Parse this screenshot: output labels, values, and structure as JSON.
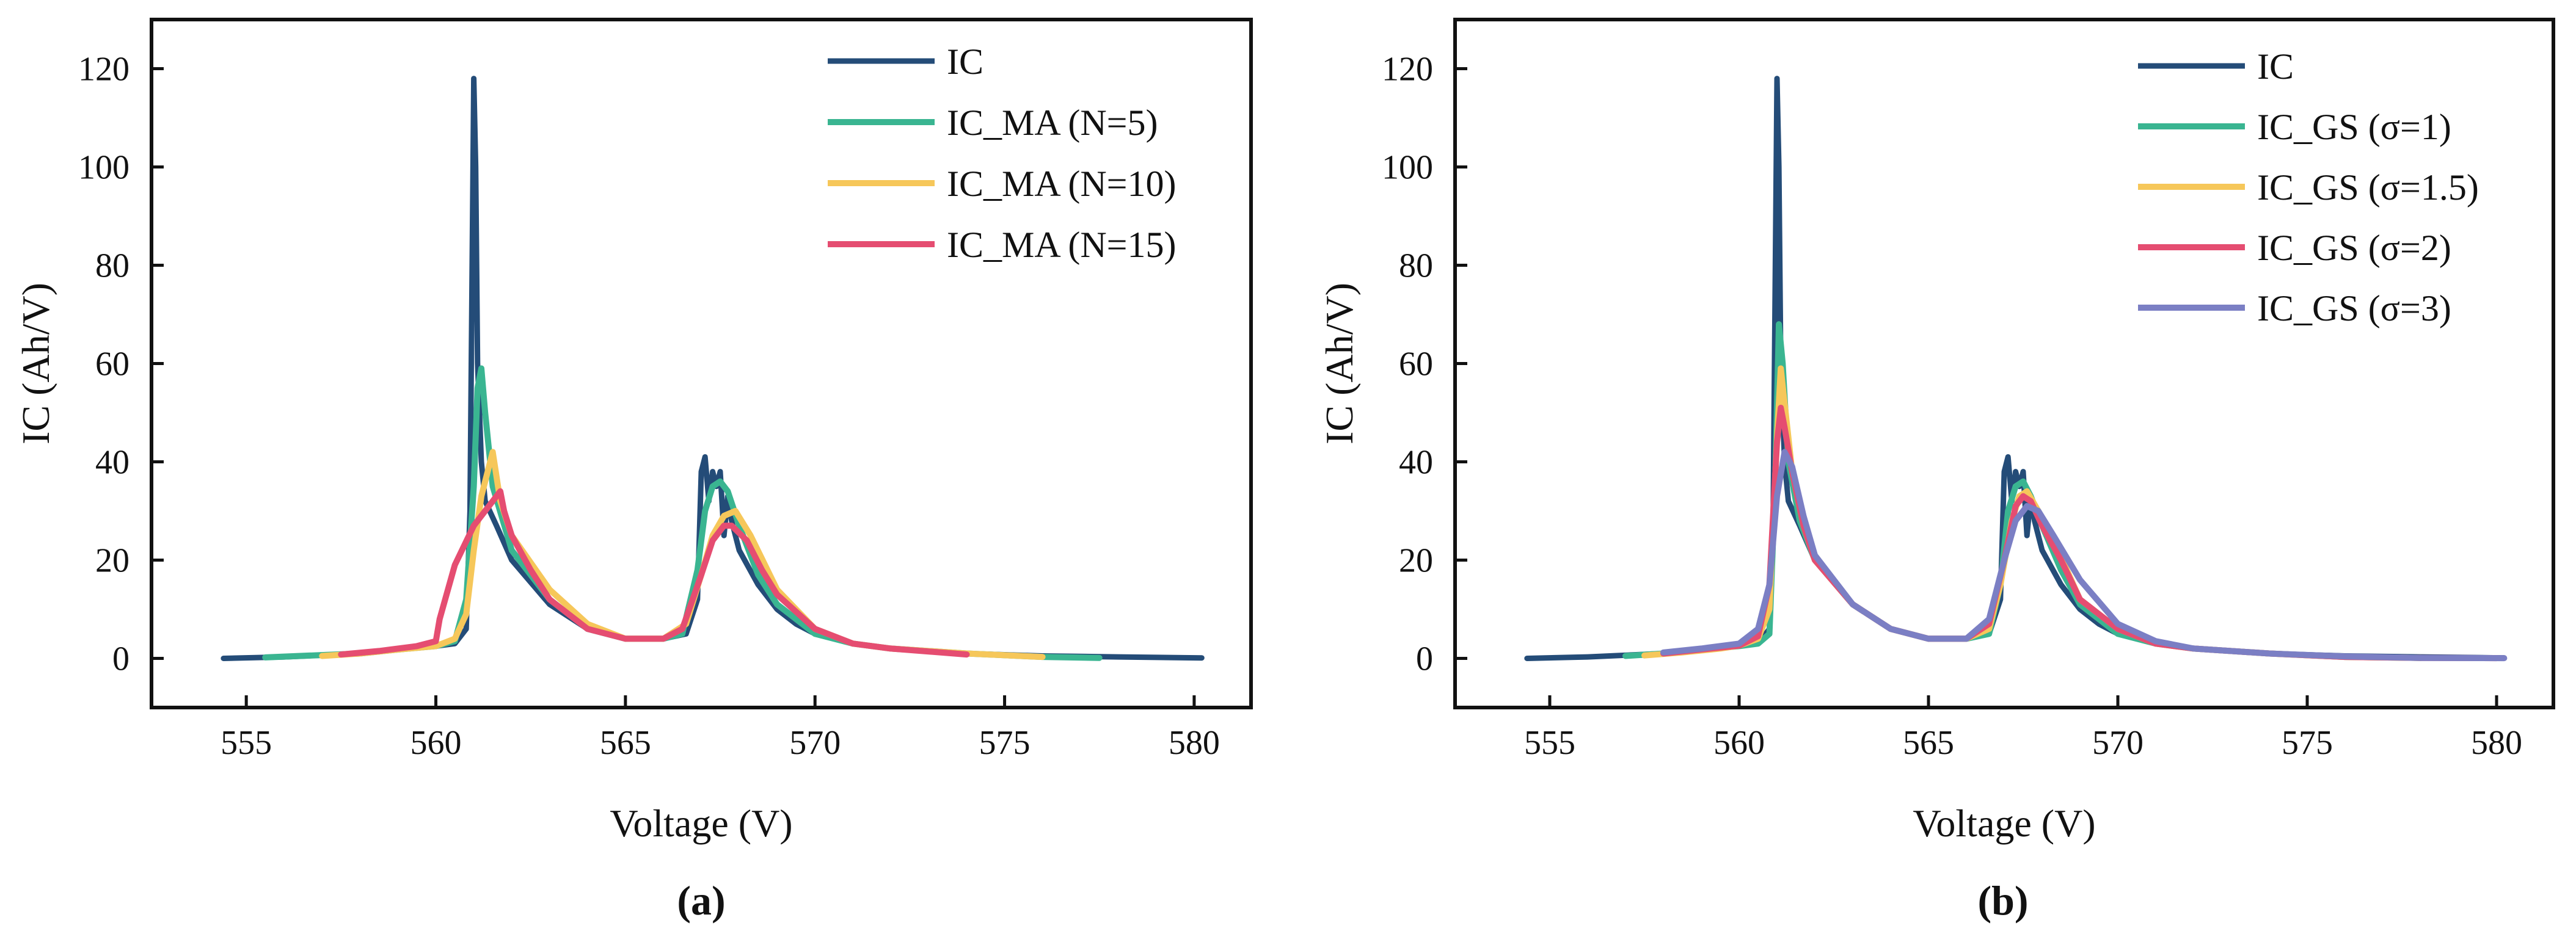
{
  "chart_data": [
    {
      "type": "line",
      "panel_label": "(a)",
      "xlabel": "Voltage (V)",
      "ylabel": "IC (Ah/V)",
      "xlim": [
        552.5,
        581.5
      ],
      "ylim": [
        -10,
        130
      ],
      "xticks": [
        555,
        560,
        565,
        570,
        575,
        580
      ],
      "yticks": [
        0,
        20,
        40,
        60,
        80,
        100,
        120
      ],
      "legend_position": "top-right",
      "series": [
        {
          "name": "IC",
          "color": "#244c78",
          "x": [
            554.4,
            556,
            558,
            559,
            560,
            560.5,
            560.8,
            560.9,
            561.0,
            561.05,
            561.1,
            561.2,
            561.3,
            561.6,
            562,
            563,
            564,
            565,
            566,
            566.6,
            566.9,
            567.0,
            567.1,
            567.2,
            567.3,
            567.4,
            567.5,
            567.6,
            567.7,
            567.8,
            568,
            568.5,
            569,
            569.5,
            570,
            571,
            572,
            574,
            576,
            578,
            580.2
          ],
          "y": [
            0,
            0.3,
            1,
            1.8,
            2.5,
            3,
            6,
            30,
            118,
            100,
            60,
            40,
            32,
            27,
            20,
            11,
            6,
            4,
            4,
            5,
            12,
            38,
            41,
            32,
            38,
            35,
            38,
            25,
            33,
            28,
            22,
            15,
            10,
            7,
            5,
            3,
            2,
            1,
            0.5,
            0.3,
            0.1
          ]
        },
        {
          "name": "IC_MA (N=5)",
          "color": "#3ab591",
          "x": [
            555.5,
            558,
            559,
            560,
            560.5,
            560.8,
            561.0,
            561.1,
            561.2,
            561.3,
            561.5,
            562,
            563,
            564,
            565,
            566,
            566.5,
            566.9,
            567.1,
            567.3,
            567.5,
            567.7,
            568,
            568.5,
            569,
            570,
            571,
            572,
            574,
            576,
            577.5
          ],
          "y": [
            0.2,
            1,
            1.8,
            2.5,
            3.5,
            12,
            35,
            55,
            59,
            50,
            35,
            22,
            12,
            6,
            4,
            4,
            5,
            18,
            30,
            35,
            36,
            34,
            27,
            17,
            11,
            5,
            3,
            2,
            1,
            0.3,
            0.1
          ]
        },
        {
          "name": "IC_MA (N=10)",
          "color": "#f6c75a",
          "x": [
            557,
            558,
            559,
            560,
            560.5,
            560.8,
            561.0,
            561.2,
            561.4,
            561.5,
            561.7,
            562,
            563,
            564,
            565,
            566,
            566.6,
            567.0,
            567.3,
            567.6,
            567.9,
            568.3,
            569,
            570,
            571,
            572,
            574,
            576
          ],
          "y": [
            0.5,
            1,
            1.8,
            2.5,
            4,
            9,
            22,
            33,
            39,
            42,
            32,
            25,
            14,
            7,
            4,
            4,
            7,
            17,
            25,
            29,
            30,
            25,
            14,
            6,
            3,
            2,
            1,
            0.3
          ]
        },
        {
          "name": "IC_MA (N=15)",
          "color": "#e54d71",
          "x": [
            557.5,
            558.5,
            559.5,
            560,
            560.1,
            560.5,
            561,
            561.5,
            561.7,
            561.8,
            562,
            562.5,
            563,
            564,
            565,
            566,
            566.5,
            567,
            567.3,
            567.6,
            567.8,
            568.2,
            568.6,
            569,
            570,
            571,
            572,
            574
          ],
          "y": [
            0.8,
            1.5,
            2.5,
            3.5,
            8,
            19,
            27,
            32,
            34,
            30,
            25,
            18,
            12,
            6,
            4,
            4,
            6,
            17,
            24,
            27,
            27,
            24,
            18,
            13,
            6,
            3,
            2,
            0.8
          ]
        }
      ]
    },
    {
      "type": "line",
      "panel_label": "(b)",
      "xlabel": "Voltage (V)",
      "ylabel": "IC (Ah/V)",
      "xlim": [
        552.5,
        581.5
      ],
      "ylim": [
        -10,
        130
      ],
      "xticks": [
        555,
        560,
        565,
        570,
        575,
        580
      ],
      "yticks": [
        0,
        20,
        40,
        60,
        80,
        100,
        120
      ],
      "legend_position": "top-right",
      "series": [
        {
          "name": "IC",
          "color": "#244c78",
          "x": [
            554.4,
            556,
            558,
            559,
            560,
            560.5,
            560.8,
            560.9,
            561.0,
            561.05,
            561.1,
            561.2,
            561.3,
            561.6,
            562,
            563,
            564,
            565,
            566,
            566.6,
            566.9,
            567.0,
            567.1,
            567.2,
            567.3,
            567.4,
            567.5,
            567.6,
            567.7,
            567.8,
            568,
            568.5,
            569,
            569.5,
            570,
            571,
            572,
            574,
            576,
            578,
            580.2
          ],
          "y": [
            0,
            0.3,
            1,
            1.8,
            2.5,
            3,
            6,
            30,
            118,
            100,
            60,
            40,
            32,
            27,
            20,
            11,
            6,
            4,
            4,
            5,
            12,
            38,
            41,
            32,
            38,
            35,
            38,
            25,
            33,
            28,
            22,
            15,
            10,
            7,
            5,
            3,
            2,
            1,
            0.5,
            0.3,
            0.1
          ]
        },
        {
          "name": "IC_GS (σ=1)",
          "color": "#3ab591",
          "x": [
            557,
            558,
            559,
            560,
            560.5,
            560.8,
            560.95,
            561.05,
            561.15,
            561.3,
            561.6,
            562,
            563,
            564,
            565,
            566,
            566.6,
            566.9,
            567.1,
            567.3,
            567.5,
            567.7,
            568,
            568.5,
            569,
            570,
            571,
            572,
            574,
            576,
            578
          ],
          "y": [
            0.5,
            1,
            1.8,
            2.5,
            3,
            5,
            35,
            68,
            60,
            40,
            28,
            20,
            11,
            6,
            4,
            4,
            5,
            15,
            30,
            35,
            36,
            33,
            27,
            18,
            11,
            5,
            3,
            2,
            1,
            0.3,
            0.1
          ]
        },
        {
          "name": "IC_GS (σ=1.5)",
          "color": "#f6c75a",
          "x": [
            557.5,
            558.5,
            559.5,
            560,
            560.5,
            560.8,
            561.0,
            561.1,
            561.2,
            561.4,
            561.7,
            562,
            563,
            564,
            565,
            566,
            566.6,
            566.9,
            567.2,
            567.4,
            567.6,
            567.9,
            568.3,
            569,
            570,
            571,
            572,
            574,
            576,
            578
          ],
          "y": [
            0.6,
            1.2,
            2,
            2.6,
            4,
            10,
            45,
            59,
            52,
            38,
            27,
            20,
            11,
            6,
            4,
            4,
            6,
            15,
            28,
            33,
            34,
            30,
            24,
            12,
            6,
            3,
            2,
            1,
            0.3,
            0.1
          ]
        },
        {
          "name": "IC_GS (σ=2)",
          "color": "#e54d71",
          "x": [
            558,
            559,
            560,
            560.5,
            560.8,
            561.0,
            561.1,
            561.2,
            561.4,
            561.7,
            562,
            563,
            564,
            565,
            566,
            566.6,
            567.0,
            567.3,
            567.5,
            567.7,
            568,
            568.5,
            569,
            570,
            571,
            572,
            574,
            576,
            578,
            580
          ],
          "y": [
            1,
            1.8,
            2.6,
            4.5,
            15,
            44,
            51,
            47,
            38,
            27,
            20,
            11,
            6,
            4,
            4,
            7,
            20,
            31,
            33,
            32,
            27,
            20,
            12,
            6,
            3,
            2,
            1,
            0.3,
            0.1,
            0.05
          ]
        },
        {
          "name": "IC_GS (σ=3)",
          "color": "#7b7fc4",
          "x": [
            558,
            559,
            560,
            560.5,
            560.8,
            561.0,
            561.2,
            561.4,
            561.7,
            562,
            563,
            564,
            565,
            566,
            566.6,
            567.0,
            567.3,
            567.6,
            567.9,
            568.3,
            569,
            570,
            571,
            572,
            574,
            576,
            578,
            580.2
          ],
          "y": [
            1.2,
            2,
            3,
            6,
            15,
            33,
            42,
            39,
            29,
            21,
            11,
            6,
            4,
            4,
            8,
            20,
            28,
            31,
            30,
            25,
            16,
            7,
            3.5,
            2,
            1,
            0.4,
            0.1,
            0.05
          ]
        }
      ]
    }
  ]
}
